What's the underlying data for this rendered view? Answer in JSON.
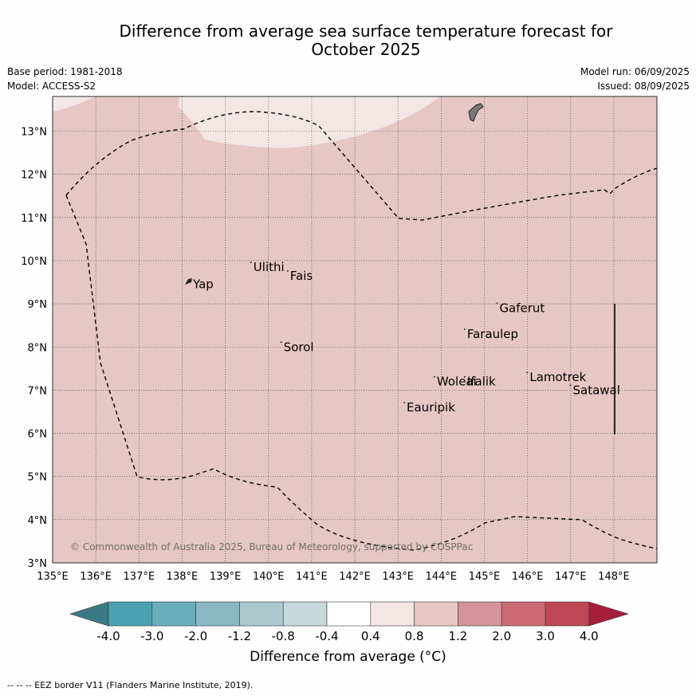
{
  "header": {
    "title_line1": "Difference from average sea surface temperature forecast for",
    "title_line2": "October 2025",
    "base_period": "Base period: 1981-2018",
    "model": "Model: ACCESS-S2",
    "model_run": "Model run: 06/09/2025",
    "issued": "Issued: 08/09/2025"
  },
  "map": {
    "lon_range": [
      135,
      149
    ],
    "lat_range": [
      3,
      13.8
    ],
    "lon_ticks": [
      "135°E",
      "136°E",
      "137°E",
      "138°E",
      "139°E",
      "140°E",
      "141°E",
      "142°E",
      "143°E",
      "144°E",
      "145°E",
      "146°E",
      "147°E",
      "148°E"
    ],
    "lat_ticks": [
      "3°N",
      "4°N",
      "5°N",
      "6°N",
      "7°N",
      "8°N",
      "9°N",
      "10°N",
      "11°N",
      "12°N",
      "13°N"
    ],
    "background_fill": "#e6c7c3",
    "light_patch_fill": "#f3e6e4",
    "places": [
      {
        "name": "Yap",
        "lon": 138.25,
        "lat": 9.45
      },
      {
        "name": "Ulithi",
        "lon": 139.65,
        "lat": 9.85
      },
      {
        "name": "Fais",
        "lon": 140.5,
        "lat": 9.65
      },
      {
        "name": "Sorol",
        "lon": 140.35,
        "lat": 8.0
      },
      {
        "name": "Gaferut",
        "lon": 145.35,
        "lat": 8.9
      },
      {
        "name": "Faraulep",
        "lon": 144.6,
        "lat": 8.3
      },
      {
        "name": "Lamotrek",
        "lon": 146.05,
        "lat": 7.3
      },
      {
        "name": "Satawal",
        "lon": 147.05,
        "lat": 7.0
      },
      {
        "name": "Woleai",
        "lon": 143.9,
        "lat": 7.2
      },
      {
        "name": "Ifalik",
        "lon": 144.6,
        "lat": 7.2
      },
      {
        "name": "Eauripik",
        "lon": 143.2,
        "lat": 6.6
      }
    ],
    "copyright": "© Commonwealth of Australia 2025, Bureau of Meteorology, supported by COSPPac"
  },
  "colorbar": {
    "label": "Difference from average (°C)",
    "ticks": [
      "-4.0",
      "-3.0",
      "-2.0",
      "-1.2",
      "-0.8",
      "-0.4",
      "0.4",
      "0.8",
      "1.2",
      "2.0",
      "3.0",
      "4.0"
    ],
    "colors": [
      "#3a7a86",
      "#4aa2b1",
      "#6aaebb",
      "#89b8c3",
      "#abc9cf",
      "#c8d9dc",
      "#ffffff",
      "#f3e6e4",
      "#e6c7c3",
      "#d6939a",
      "#cc6b75",
      "#bf4655",
      "#a51e3a"
    ]
  },
  "footer": {
    "eez_note": "-- -- -- EEZ border V11 (Flanders Marine Institute, 2019)."
  }
}
